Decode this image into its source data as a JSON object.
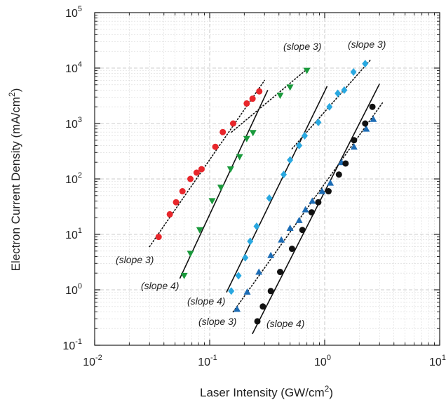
{
  "chart_data": {
    "type": "scatter",
    "title": "",
    "xlabel": "Laser Intensity (GW/cm²)",
    "ylabel": "Electron Current Density (mA/cm²)",
    "x_scale": "log",
    "y_scale": "log",
    "xlim": [
      0.01,
      10
    ],
    "ylim": [
      0.1,
      100000
    ],
    "grid": true,
    "x_ticks": [
      {
        "base": "10",
        "exp": "-2",
        "value": 0.01
      },
      {
        "base": "10",
        "exp": "-1",
        "value": 0.1
      },
      {
        "base": "10",
        "exp": "0",
        "value": 1
      },
      {
        "base": "10",
        "exp": "1",
        "value": 10
      }
    ],
    "y_ticks": [
      {
        "base": "10",
        "exp": "-1",
        "value": 0.1
      },
      {
        "base": "10",
        "exp": "0",
        "value": 1
      },
      {
        "base": "10",
        "exp": "1",
        "value": 10
      },
      {
        "base": "10",
        "exp": "2",
        "value": 100
      },
      {
        "base": "10",
        "exp": "3",
        "value": 1000
      },
      {
        "base": "10",
        "exp": "4",
        "value": 10000
      },
      {
        "base": "10",
        "exp": "5",
        "value": 100000
      }
    ],
    "series": [
      {
        "marker": "circle",
        "color": "#e8262b",
        "points": [
          [
            0.036,
            9
          ],
          [
            0.045,
            23
          ],
          [
            0.051,
            38
          ],
          [
            0.058,
            60
          ],
          [
            0.068,
            100
          ],
          [
            0.077,
            130
          ],
          [
            0.085,
            150
          ],
          [
            0.112,
            380
          ],
          [
            0.13,
            700
          ],
          [
            0.16,
            1000
          ],
          [
            0.21,
            2300
          ],
          [
            0.236,
            2800
          ],
          [
            0.27,
            3800
          ]
        ]
      },
      {
        "marker": "triangle-down",
        "color": "#1a9a3c",
        "points": [
          [
            0.06,
            1.8
          ],
          [
            0.068,
            4.5
          ],
          [
            0.082,
            12
          ],
          [
            0.105,
            40
          ],
          [
            0.125,
            70
          ],
          [
            0.152,
            150
          ],
          [
            0.182,
            250
          ],
          [
            0.21,
            530
          ],
          [
            0.238,
            680
          ],
          [
            0.41,
            3200
          ],
          [
            0.5,
            4500
          ],
          [
            0.7,
            9000
          ]
        ]
      },
      {
        "marker": "diamond",
        "color": "#29a8e0",
        "points": [
          [
            0.154,
            0.95
          ],
          [
            0.178,
            1.8
          ],
          [
            0.204,
            3.8
          ],
          [
            0.225,
            7.5
          ],
          [
            0.256,
            14
          ],
          [
            0.33,
            45
          ],
          [
            0.44,
            120
          ],
          [
            0.5,
            220
          ],
          [
            0.6,
            400
          ],
          [
            0.67,
            600
          ],
          [
            0.88,
            1050
          ],
          [
            1.1,
            2000
          ],
          [
            1.3,
            3500
          ],
          [
            1.48,
            4000
          ],
          [
            1.78,
            8500
          ],
          [
            2.25,
            12000
          ]
        ]
      },
      {
        "marker": "triangle-up",
        "color": "#1c6cb5",
        "points": [
          [
            0.173,
            0.45
          ],
          [
            0.212,
            0.92
          ],
          [
            0.268,
            2.1
          ],
          [
            0.34,
            4.2
          ],
          [
            0.42,
            8
          ],
          [
            0.5,
            13
          ],
          [
            0.6,
            18
          ],
          [
            0.68,
            28
          ],
          [
            0.78,
            40
          ],
          [
            0.95,
            60
          ],
          [
            1.12,
            85
          ],
          [
            1.4,
            200
          ],
          [
            1.8,
            380
          ],
          [
            2.3,
            800
          ],
          [
            2.65,
            1200
          ]
        ]
      },
      {
        "marker": "circle",
        "color": "#111111",
        "points": [
          [
            0.26,
            0.27
          ],
          [
            0.29,
            0.5
          ],
          [
            0.34,
            0.95
          ],
          [
            0.41,
            2.1
          ],
          [
            0.52,
            5.5
          ],
          [
            0.64,
            12
          ],
          [
            0.77,
            25
          ],
          [
            0.88,
            38
          ],
          [
            1.08,
            60
          ],
          [
            1.33,
            120
          ],
          [
            1.52,
            190
          ],
          [
            1.8,
            500
          ],
          [
            2.25,
            1000
          ],
          [
            2.6,
            2000
          ]
        ]
      }
    ],
    "fit_lines": [
      {
        "style": "dotted",
        "from": [
          0.03,
          6
        ],
        "to": [
          0.3,
          6000
        ]
      },
      {
        "style": "solid",
        "from": [
          0.055,
          1.6
        ],
        "to": [
          0.32,
          4000
        ]
      },
      {
        "style": "dotted",
        "from": [
          0.155,
          700
        ],
        "to": [
          0.72,
          10000
        ]
      },
      {
        "style": "solid",
        "from": [
          0.14,
          0.9
        ],
        "to": [
          1.05,
          4700
        ]
      },
      {
        "style": "dotted",
        "from": [
          0.52,
          350
        ],
        "to": [
          2.5,
          14000
        ]
      },
      {
        "style": "dotted",
        "from": [
          0.16,
          0.4
        ],
        "to": [
          3.2,
          2400
        ]
      },
      {
        "style": "solid",
        "from": [
          0.235,
          0.16
        ],
        "to": [
          3.0,
          5200
        ]
      }
    ],
    "annotations": [
      "(slope 3)",
      "(slope 3)",
      "(slope 3)",
      "(slope 4)",
      "(slope 4)",
      "(slope 3)",
      "(slope 4)"
    ]
  }
}
